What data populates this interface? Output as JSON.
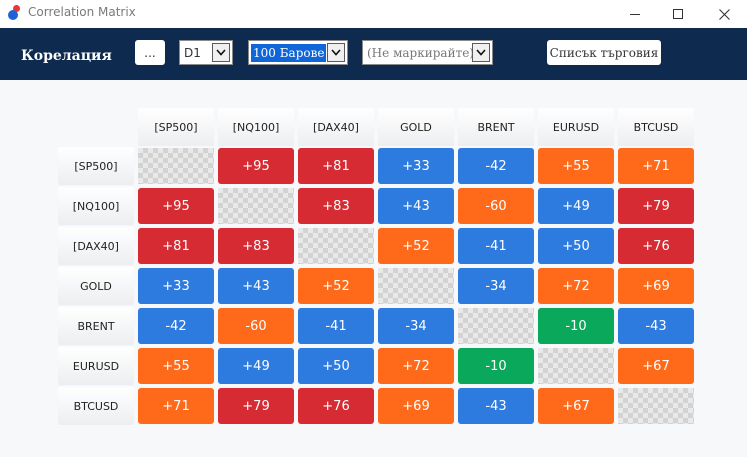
{
  "window": {
    "title": "Correlation Matrix"
  },
  "toolbar": {
    "title": "Корелация",
    "more_label": "...",
    "timeframe": "D1",
    "bars": "100 Барове",
    "marking": "(Не маркирайте)",
    "list_label": "Списък търговия"
  },
  "colors": {
    "red": "#d62b33",
    "orange": "#ff6a1a",
    "blue": "#2e7be0",
    "green": "#0aa85a",
    "toolbar": "#0e2a4f"
  },
  "matrix": {
    "symbols": [
      "[SP500]",
      "[NQ100]",
      "[DAX40]",
      "GOLD",
      "BRENT",
      "EURUSD",
      "BTCUSD"
    ],
    "values": [
      [
        null,
        "+95",
        "+81",
        "+33",
        "-42",
        "+55",
        "+71"
      ],
      [
        "+95",
        null,
        "+83",
        "+43",
        "-60",
        "+49",
        "+79"
      ],
      [
        "+81",
        "+83",
        null,
        "+52",
        "-41",
        "+50",
        "+76"
      ],
      [
        "+33",
        "+43",
        "+52",
        null,
        "-34",
        "+72",
        "+69"
      ],
      [
        "-42",
        "-60",
        "-41",
        "-34",
        null,
        "-10",
        "-43"
      ],
      [
        "+55",
        "+49",
        "+50",
        "+72",
        "-10",
        null,
        "+67"
      ],
      [
        "+71",
        "+79",
        "+76",
        "+69",
        "-43",
        "+67",
        null
      ]
    ],
    "cell_colors": [
      [
        null,
        "red",
        "red",
        "blue",
        "blue",
        "orange",
        "orange"
      ],
      [
        "red",
        null,
        "red",
        "blue",
        "orange",
        "blue",
        "red"
      ],
      [
        "red",
        "red",
        null,
        "orange",
        "blue",
        "blue",
        "red"
      ],
      [
        "blue",
        "blue",
        "orange",
        null,
        "blue",
        "orange",
        "orange"
      ],
      [
        "blue",
        "orange",
        "blue",
        "blue",
        null,
        "green",
        "blue"
      ],
      [
        "orange",
        "blue",
        "blue",
        "orange",
        "green",
        null,
        "orange"
      ],
      [
        "orange",
        "red",
        "red",
        "orange",
        "blue",
        "orange",
        null
      ]
    ]
  }
}
